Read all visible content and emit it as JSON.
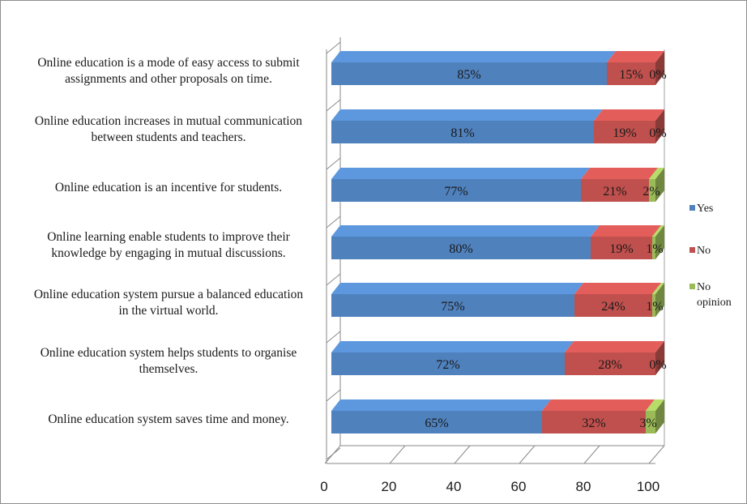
{
  "chart_data": {
    "type": "bar",
    "orientation": "horizontal",
    "stacked": true,
    "categories": [
      "Online education is a mode of easy access to submit|assignments and other proposals on time.",
      "Online education increases in mutual communication|between students and teachers.",
      "Online education is an incentive for students.",
      "Online learning enable students to improve their|knowledge by engaging in mutual discussions.",
      "Online education system pursue a balanced education|in the virtual world.",
      "Online education system helps students to organise|themselves.",
      "Online education system saves time and money."
    ],
    "series": [
      {
        "name": "Yes",
        "color": "#4f81bd",
        "values": [
          85,
          81,
          77,
          80,
          75,
          72,
          65
        ],
        "labels": [
          "85%",
          "81%",
          "77%",
          "80%",
          "75%",
          "72%",
          "65%"
        ]
      },
      {
        "name": "No",
        "color": "#c0504d",
        "values": [
          15,
          19,
          21,
          19,
          24,
          28,
          32
        ],
        "labels": [
          "15%",
          "19%",
          "21%",
          "19%",
          "24%",
          "28%",
          "32%"
        ]
      },
      {
        "name": "No opinion",
        "color": "#9bbb59",
        "values": [
          0,
          0,
          2,
          1,
          1,
          0,
          3
        ],
        "labels": [
          "0%",
          "0%",
          "2%",
          "1%",
          "1%",
          "0%",
          "3%"
        ]
      }
    ],
    "legend_labels": [
      "Yes",
      "No",
      "No|opinion"
    ],
    "xlim": [
      0,
      100
    ],
    "xticks": [
      0,
      20,
      40,
      60,
      80,
      100
    ],
    "xtick_labels": [
      "0",
      "20",
      "40",
      "60",
      "80",
      "100"
    ],
    "title": "",
    "xlabel": "",
    "ylabel": "",
    "legend_position": "right",
    "gridlines": false,
    "style": "3d"
  }
}
